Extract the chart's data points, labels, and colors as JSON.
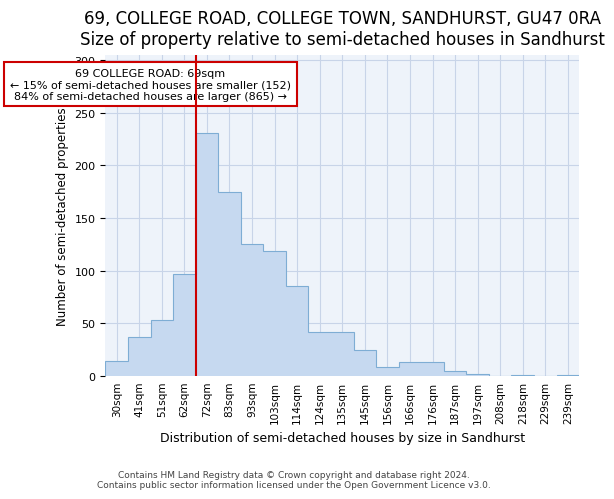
{
  "title1": "69, COLLEGE ROAD, COLLEGE TOWN, SANDHURST, GU47 0RA",
  "title2": "Size of property relative to semi-detached houses in Sandhurst",
  "xlabel": "Distribution of semi-detached houses by size in Sandhurst",
  "ylabel": "Number of semi-detached properties",
  "categories": [
    "30sqm",
    "41sqm",
    "51sqm",
    "62sqm",
    "72sqm",
    "83sqm",
    "93sqm",
    "103sqm",
    "114sqm",
    "124sqm",
    "135sqm",
    "145sqm",
    "156sqm",
    "166sqm",
    "176sqm",
    "187sqm",
    "197sqm",
    "208sqm",
    "218sqm",
    "229sqm",
    "239sqm"
  ],
  "values": [
    14,
    37,
    53,
    97,
    231,
    175,
    125,
    119,
    85,
    42,
    42,
    24,
    8,
    13,
    13,
    4,
    2,
    0,
    1,
    0,
    1
  ],
  "bar_color": "#c6d9f0",
  "bar_edge_color": "#7eadd4",
  "vline_color": "#cc0000",
  "vline_index": 4,
  "annotation_text": "69 COLLEGE ROAD: 69sqm\n← 15% of semi-detached houses are smaller (152)\n84% of semi-detached houses are larger (865) →",
  "annotation_box_color": "#ffffff",
  "annotation_box_edge": "#cc0000",
  "ylim": [
    0,
    305
  ],
  "yticks": [
    0,
    50,
    100,
    150,
    200,
    250,
    300
  ],
  "footer": "Contains HM Land Registry data © Crown copyright and database right 2024.\nContains public sector information licensed under the Open Government Licence v3.0.",
  "title1_fontsize": 12,
  "title2_fontsize": 10,
  "background_color": "#ffffff",
  "plot_bg_color": "#eef3fa",
  "grid_color": "#c8d4e8"
}
